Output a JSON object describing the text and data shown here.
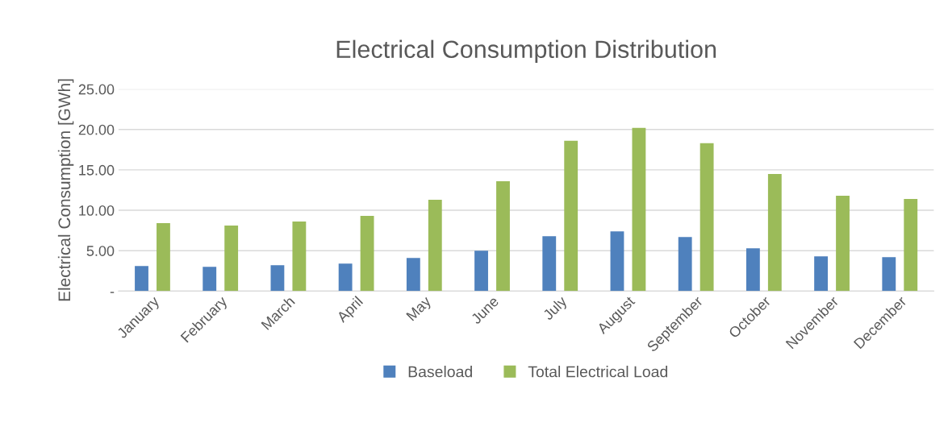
{
  "chart_data": {
    "type": "bar",
    "title": "Electrical Consumption Distribution",
    "ylabel": "Electrical Consumption [GWh]",
    "categories": [
      "January",
      "February",
      "March",
      "April",
      "May",
      "June",
      "July",
      "August",
      "September",
      "October",
      "November",
      "December"
    ],
    "series": [
      {
        "name": "Baseload",
        "color": "#4f81bd",
        "values": [
          3.1,
          3.0,
          3.2,
          3.4,
          4.1,
          5.0,
          6.8,
          7.4,
          6.7,
          5.3,
          4.3,
          4.2
        ]
      },
      {
        "name": "Total Electrical Load",
        "color": "#9bbb59",
        "values": [
          8.4,
          8.1,
          8.6,
          9.3,
          11.3,
          13.6,
          18.6,
          20.2,
          18.3,
          14.5,
          11.8,
          11.4
        ]
      }
    ],
    "ylim": [
      0,
      25
    ],
    "yticks": [
      {
        "value": 0,
        "label": "-"
      },
      {
        "value": 5,
        "label": "5.00"
      },
      {
        "value": 10,
        "label": "10.00"
      },
      {
        "value": 15,
        "label": "15.00"
      },
      {
        "value": 20,
        "label": "20.00"
      },
      {
        "value": 25,
        "label": "25.00"
      }
    ],
    "grid": "y",
    "legend": "bottom"
  }
}
